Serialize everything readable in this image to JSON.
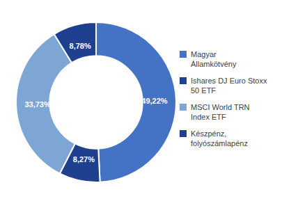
{
  "chart_data": {
    "type": "pie",
    "categories": [
      "Magyar\nÁllamkötvény",
      "Ishares DJ Euro Stoxx\n50 ETF",
      "MSCI World TRN\nIndex ETF",
      "Készpénz,\nfolyószámlapénz"
    ],
    "values": [
      49.22,
      8.27,
      33.73,
      8.78
    ],
    "value_labels": [
      "49,22%",
      "8,27%",
      "33,73%",
      "8,78%"
    ],
    "colors": [
      "#4472C4",
      "#1F3F8F",
      "#7EA6D4",
      "#1F3F8F"
    ],
    "data_labels": true,
    "legend": "right"
  }
}
